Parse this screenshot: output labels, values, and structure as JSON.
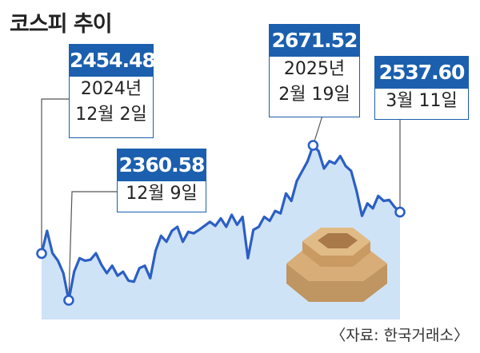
{
  "title": "코스피 추이",
  "source": "〈자료: 한국거래소〉",
  "colors": {
    "line": "#2b5fc4",
    "area": "#cfe3f7",
    "callout": "#1b5fae"
  },
  "callouts": [
    {
      "value": "2454.48",
      "lines": [
        "2024년",
        "12월 2일"
      ]
    },
    {
      "value": "2360.58",
      "lines": [
        "12월 9일"
      ]
    },
    {
      "value": "2671.52",
      "lines": [
        "2025년",
        "2월 19일"
      ]
    },
    {
      "value": "2537.60",
      "lines": [
        "3월 11일"
      ]
    }
  ],
  "chart_data": {
    "type": "area",
    "title": "코스피 추이",
    "annotated_points": [
      {
        "label": "2024년 12월 2일",
        "value": 2454.48
      },
      {
        "label": "12월 9일",
        "value": 2360.58
      },
      {
        "label": "2025년 2월 19일",
        "value": 2671.52
      },
      {
        "label": "3월 11일",
        "value": 2537.6
      }
    ],
    "values": [
      2454.48,
      2500,
      2455,
      2440,
      2415,
      2360.58,
      2418,
      2445,
      2440,
      2442,
      2455,
      2432,
      2415,
      2430,
      2410,
      2418,
      2400,
      2398,
      2425,
      2430,
      2405,
      2460,
      2490,
      2478,
      2500,
      2508,
      2478,
      2498,
      2495,
      2502,
      2510,
      2518,
      2510,
      2525,
      2508,
      2532,
      2512,
      2528,
      2445,
      2502,
      2508,
      2528,
      2520,
      2540,
      2535,
      2575,
      2560,
      2600,
      2620,
      2640,
      2671.52,
      2660,
      2625,
      2640,
      2635,
      2650,
      2630,
      2620,
      2580,
      2530,
      2555,
      2545,
      2570,
      2560,
      2562,
      2548,
      2537.6
    ]
  }
}
